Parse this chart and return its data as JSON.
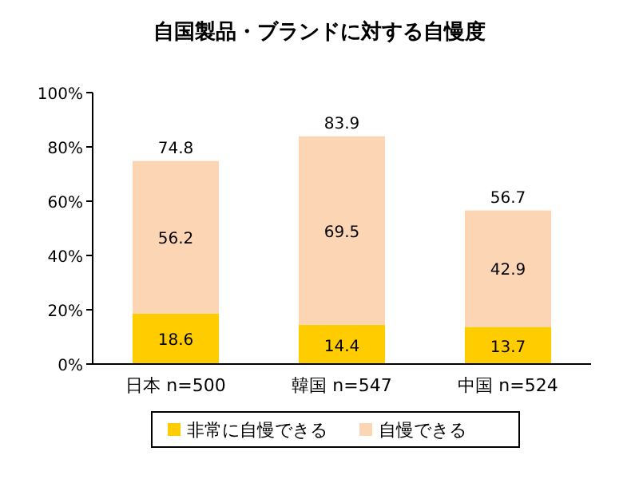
{
  "chart_data": {
    "type": "bar",
    "title": "自国製品・ブランドに対する自慢度",
    "categories": [
      "日本 n=500",
      "韓国 n=547",
      "中国 n=524"
    ],
    "stacked": true,
    "series": [
      {
        "name": "非常に自慢できる",
        "color": "#ffcc00",
        "values": [
          18.6,
          14.4,
          13.7
        ]
      },
      {
        "name": "自慢できる",
        "color": "#fcd5b4",
        "values": [
          56.2,
          69.5,
          42.9
        ]
      }
    ],
    "totals": [
      "74.8",
      "83.9",
      "56.7"
    ],
    "data_labels": true,
    "ylim": [
      0,
      100
    ],
    "yticks": [
      {
        "value": 0,
        "label": "0%"
      },
      {
        "value": 20,
        "label": "20%"
      },
      {
        "value": 40,
        "label": "40%"
      },
      {
        "value": 60,
        "label": "60%"
      },
      {
        "value": 80,
        "label": "80%"
      },
      {
        "value": 100,
        "label": "100%"
      }
    ],
    "grid": false,
    "legend": "bottom"
  }
}
